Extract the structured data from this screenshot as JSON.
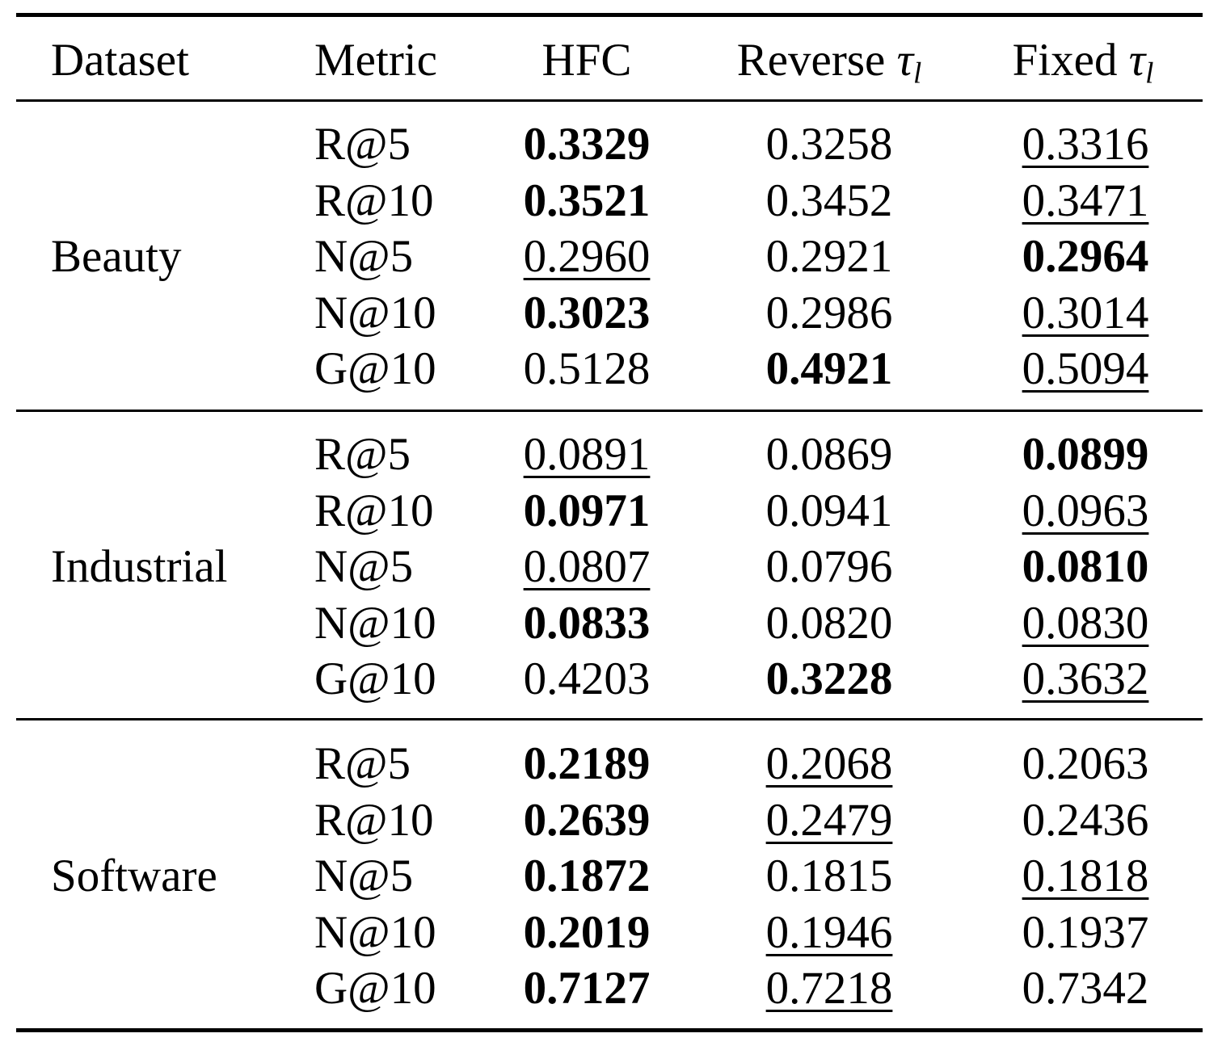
{
  "table": {
    "header": {
      "dataset": "Dataset",
      "metric": "Metric",
      "hfc": "HFC",
      "reverse": "Reverse",
      "fixed": "Fixed",
      "tau_symbol": "τ",
      "tau_subscript": "l"
    },
    "groups": [
      {
        "name": "Beauty",
        "rows": [
          {
            "metric": "R@5",
            "hfc": {
              "v": "0.3329",
              "s": "bold"
            },
            "rev": {
              "v": "0.3258",
              "s": "normal"
            },
            "fix": {
              "v": "0.3316",
              "s": "underline"
            }
          },
          {
            "metric": "R@10",
            "hfc": {
              "v": "0.3521",
              "s": "bold"
            },
            "rev": {
              "v": "0.3452",
              "s": "normal"
            },
            "fix": {
              "v": "0.3471",
              "s": "underline"
            }
          },
          {
            "metric": "N@5",
            "hfc": {
              "v": "0.2960",
              "s": "underline"
            },
            "rev": {
              "v": "0.2921",
              "s": "normal"
            },
            "fix": {
              "v": "0.2964",
              "s": "bold"
            }
          },
          {
            "metric": "N@10",
            "hfc": {
              "v": "0.3023",
              "s": "bold"
            },
            "rev": {
              "v": "0.2986",
              "s": "normal"
            },
            "fix": {
              "v": "0.3014",
              "s": "underline"
            }
          },
          {
            "metric": "G@10",
            "hfc": {
              "v": "0.5128",
              "s": "normal"
            },
            "rev": {
              "v": "0.4921",
              "s": "bold"
            },
            "fix": {
              "v": "0.5094",
              "s": "underline"
            }
          }
        ]
      },
      {
        "name": "Industrial",
        "rows": [
          {
            "metric": "R@5",
            "hfc": {
              "v": "0.0891",
              "s": "underline"
            },
            "rev": {
              "v": "0.0869",
              "s": "normal"
            },
            "fix": {
              "v": "0.0899",
              "s": "bold"
            }
          },
          {
            "metric": "R@10",
            "hfc": {
              "v": "0.0971",
              "s": "bold"
            },
            "rev": {
              "v": "0.0941",
              "s": "normal"
            },
            "fix": {
              "v": "0.0963",
              "s": "underline"
            }
          },
          {
            "metric": "N@5",
            "hfc": {
              "v": "0.0807",
              "s": "underline"
            },
            "rev": {
              "v": "0.0796",
              "s": "normal"
            },
            "fix": {
              "v": "0.0810",
              "s": "bold"
            }
          },
          {
            "metric": "N@10",
            "hfc": {
              "v": "0.0833",
              "s": "bold"
            },
            "rev": {
              "v": "0.0820",
              "s": "normal"
            },
            "fix": {
              "v": "0.0830",
              "s": "underline"
            }
          },
          {
            "metric": "G@10",
            "hfc": {
              "v": "0.4203",
              "s": "normal"
            },
            "rev": {
              "v": "0.3228",
              "s": "bold"
            },
            "fix": {
              "v": "0.3632",
              "s": "underline"
            }
          }
        ]
      },
      {
        "name": "Software",
        "rows": [
          {
            "metric": "R@5",
            "hfc": {
              "v": "0.2189",
              "s": "bold"
            },
            "rev": {
              "v": "0.2068",
              "s": "underline"
            },
            "fix": {
              "v": "0.2063",
              "s": "normal"
            }
          },
          {
            "metric": "R@10",
            "hfc": {
              "v": "0.2639",
              "s": "bold"
            },
            "rev": {
              "v": "0.2479",
              "s": "underline"
            },
            "fix": {
              "v": "0.2436",
              "s": "normal"
            }
          },
          {
            "metric": "N@5",
            "hfc": {
              "v": "0.1872",
              "s": "bold"
            },
            "rev": {
              "v": "0.1815",
              "s": "normal"
            },
            "fix": {
              "v": "0.1818",
              "s": "underline"
            }
          },
          {
            "metric": "N@10",
            "hfc": {
              "v": "0.2019",
              "s": "bold"
            },
            "rev": {
              "v": "0.1946",
              "s": "underline"
            },
            "fix": {
              "v": "0.1937",
              "s": "normal"
            }
          },
          {
            "metric": "G@10",
            "hfc": {
              "v": "0.7127",
              "s": "bold"
            },
            "rev": {
              "v": "0.7218",
              "s": "underline"
            },
            "fix": {
              "v": "0.7342",
              "s": "normal"
            }
          }
        ]
      }
    ]
  }
}
